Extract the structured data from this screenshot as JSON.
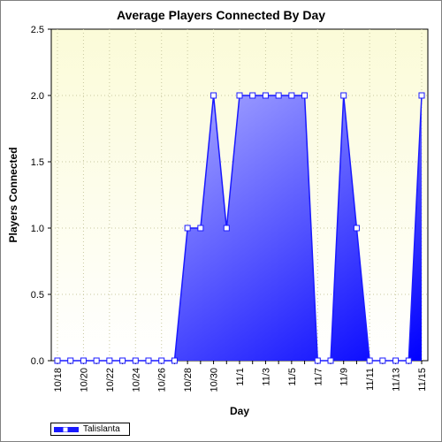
{
  "colors": {
    "series_line": "#1a1aff",
    "series_fill_top": "#c8c8ff",
    "series_fill_bottom": "#0000ff",
    "plot_bg_top": "#fbfbd8",
    "plot_bg_bottom": "#ffffff",
    "grid": "#c8c8a0"
  },
  "chart_data": {
    "type": "area",
    "title": "Average Players Connected By Day",
    "xlabel": "Day",
    "ylabel": "Players Connected",
    "ylim": [
      0,
      2.5
    ],
    "yticks": [
      "0.0",
      "0.5",
      "1.0",
      "1.5",
      "2.0",
      "2.5"
    ],
    "xtick_labels": [
      "10/18",
      "10/20",
      "10/22",
      "10/24",
      "10/26",
      "10/28",
      "10/30",
      "11/1",
      "11/3",
      "11/5",
      "11/7",
      "11/9",
      "11/11",
      "11/13",
      "11/15"
    ],
    "grid": true,
    "legend_position": "bottom-left",
    "x": [
      "10/18",
      "10/19",
      "10/20",
      "10/21",
      "10/22",
      "10/23",
      "10/24",
      "10/25",
      "10/26",
      "10/27",
      "10/28",
      "10/29",
      "10/30",
      "10/31",
      "11/1",
      "11/2",
      "11/3",
      "11/4",
      "11/5",
      "11/6",
      "11/7",
      "11/8",
      "11/9",
      "11/10",
      "11/11",
      "11/12",
      "11/13",
      "11/14",
      "11/15"
    ],
    "series": [
      {
        "name": "Talislanta",
        "values": [
          0,
          0,
          0,
          0,
          0,
          0,
          0,
          0,
          0,
          0,
          1,
          1,
          2,
          1,
          2,
          2,
          2,
          2,
          2,
          2,
          0,
          0,
          2,
          1,
          0,
          0,
          0,
          0,
          2
        ]
      }
    ]
  }
}
